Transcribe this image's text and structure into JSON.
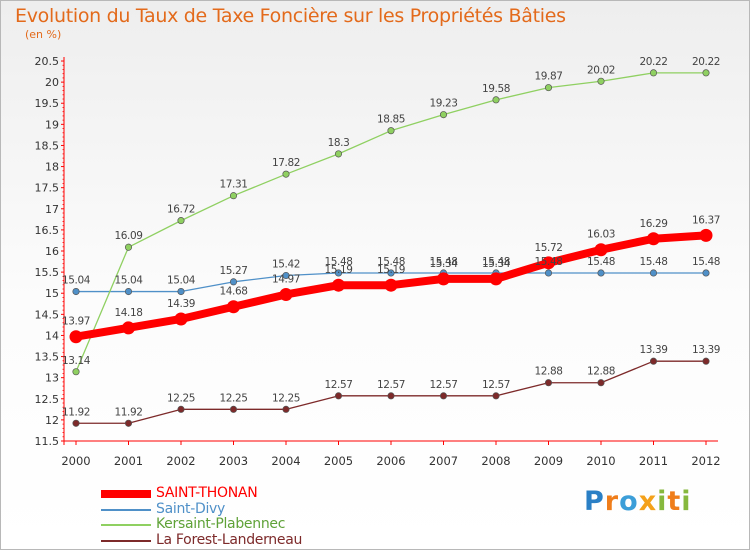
{
  "header": {
    "title": "Evolution du Taux de Taxe Foncière sur les Propriétés Bâties",
    "unit": "(en %)"
  },
  "logo": {
    "text": "Proxiti",
    "letters": [
      {
        "ch": "P",
        "color": "#2a7fc5"
      },
      {
        "ch": "r",
        "color": "#ef7d1a"
      },
      {
        "ch": "o",
        "color": "#3c9ed8"
      },
      {
        "ch": "x",
        "color": "#f4a11a"
      },
      {
        "ch": "i",
        "color": "#86b83d"
      },
      {
        "ch": "t",
        "color": "#ef7d1a"
      },
      {
        "ch": "i",
        "color": "#86b83d"
      }
    ]
  },
  "chart_data": {
    "type": "line",
    "title": "Evolution du Taux de Taxe Foncière sur les Propriétés Bâties",
    "ylabel": "(en %)",
    "xlabel": "",
    "x": [
      "2000",
      "2001",
      "2002",
      "2003",
      "2004",
      "2005",
      "2006",
      "2007",
      "2008",
      "2009",
      "2010",
      "2011",
      "2012"
    ],
    "ylim": [
      11.5,
      20.5
    ],
    "yticks": [
      "11.5",
      "12",
      "12.5",
      "13",
      "13.5",
      "14",
      "14.5",
      "15",
      "15.5",
      "16",
      "16.5",
      "17",
      "17.5",
      "18",
      "18.5",
      "19",
      "19.5",
      "20",
      "20.5"
    ],
    "grid": false,
    "legend": "bottom-left",
    "series": [
      {
        "name": "SAINT-THONAN",
        "color": "#ff0000",
        "values": [
          13.97,
          14.18,
          14.39,
          14.68,
          14.97,
          15.19,
          15.19,
          15.34,
          15.34,
          15.72,
          16.03,
          16.29,
          16.37
        ],
        "labels": [
          "13.97",
          "14.18",
          "14.39",
          "14.68",
          "14.97",
          "15.19",
          "15.19",
          "15.34",
          "15.34",
          "15.72",
          "16.03",
          "16.29",
          "16.37"
        ]
      },
      {
        "name": "Saint-Divy",
        "color": "#4f90c8",
        "values": [
          15.04,
          15.04,
          15.04,
          15.27,
          15.42,
          15.48,
          15.48,
          15.48,
          15.48,
          15.48,
          15.48,
          15.48,
          15.48
        ],
        "labels": [
          "15.04",
          "15.04",
          "15.04",
          "15.27",
          "15.42",
          "15.48",
          "15.48",
          "15.48",
          "15.48",
          "15.48",
          "15.48",
          "15.48",
          "15.48"
        ]
      },
      {
        "name": "Kersaint-Plabennec",
        "color": "#8fd061",
        "values": [
          13.14,
          16.09,
          16.72,
          17.31,
          17.82,
          18.3,
          18.85,
          19.23,
          19.58,
          19.87,
          20.02,
          20.22,
          20.22
        ],
        "labels": [
          "13.14",
          "16.09",
          "16.72",
          "17.31",
          "17.82",
          "18.3",
          "18.85",
          "19.23",
          "19.58",
          "19.87",
          "20.02",
          "20.22",
          "20.22"
        ]
      },
      {
        "name": "La Forest-Landerneau",
        "color": "#7d2a2a",
        "values": [
          11.92,
          11.92,
          12.25,
          12.25,
          12.25,
          12.57,
          12.57,
          12.57,
          12.57,
          12.88,
          12.88,
          13.39,
          13.39
        ],
        "labels": [
          "11.92",
          "11.92",
          "12.25",
          "12.25",
          "12.25",
          "12.57",
          "12.57",
          "12.57",
          "12.57",
          "12.88",
          "12.88",
          "13.39",
          "13.39"
        ]
      }
    ]
  }
}
